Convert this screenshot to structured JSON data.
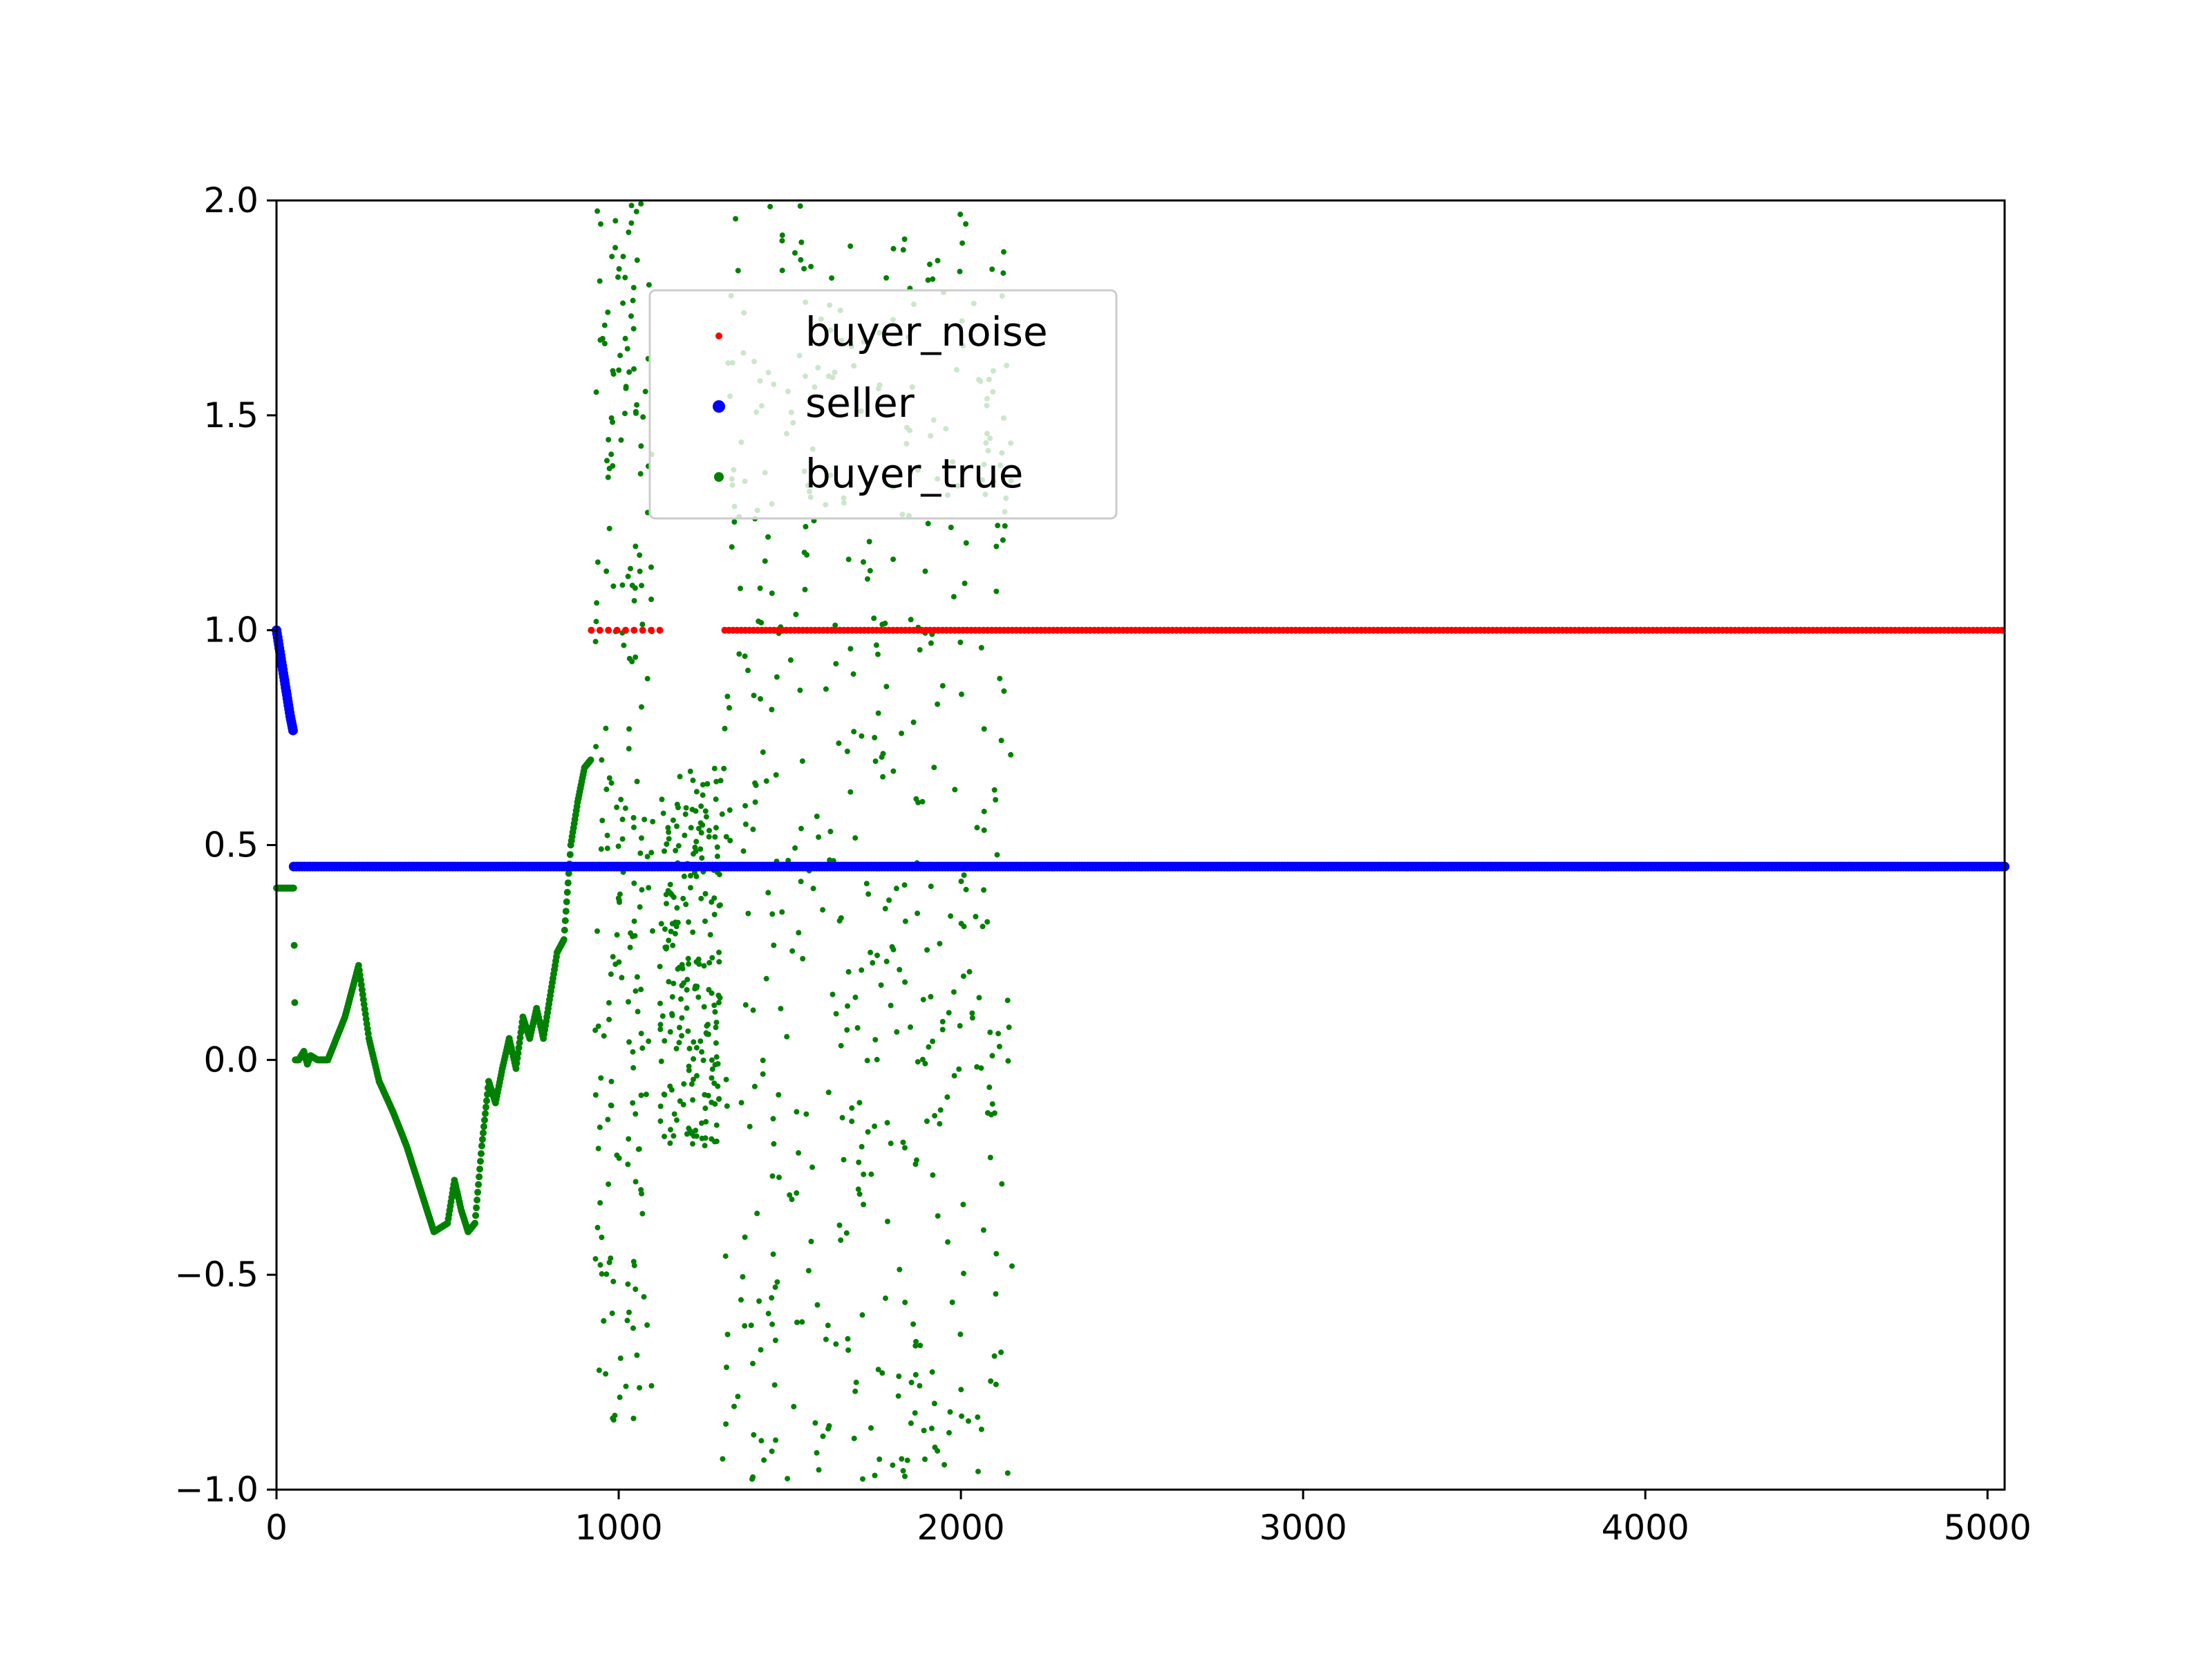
{
  "chart_data": {
    "type": "scatter",
    "title": "",
    "xlabel": "",
    "ylabel": "",
    "xlim": [
      0,
      5050
    ],
    "ylim": [
      -1.0,
      2.0
    ],
    "x_ticks": [
      0,
      1000,
      2000,
      3000,
      4000,
      5000
    ],
    "x_tick_labels": [
      "0",
      "1000",
      "2000",
      "3000",
      "4000",
      "5000"
    ],
    "y_ticks": [
      -1.0,
      -0.5,
      0.0,
      0.5,
      1.0,
      1.5,
      2.0
    ],
    "y_tick_labels": [
      "−1.0",
      "−0.5",
      "0.0",
      "0.5",
      "1.0",
      "1.5",
      "2.0"
    ],
    "grid": false,
    "legend": {
      "placement": "upper-center"
    },
    "series": [
      {
        "name": "buyer_noise",
        "color": "#ff0000",
        "marker_size": 1,
        "segments": [
          {
            "x_start": 920,
            "x_end": 1130,
            "step": 25,
            "y": 1.0
          },
          {
            "x_start": 1310,
            "x_end": 5050,
            "step": 12,
            "y": 1.0
          }
        ]
      },
      {
        "name": "seller",
        "color": "#0000ff",
        "marker_size": 2,
        "segments": [
          {
            "x": [
              0,
              10,
              20,
              30,
              40,
              50
            ],
            "y": [
              1.0,
              0.95,
              0.9,
              0.85,
              0.8,
              0.76
            ]
          },
          {
            "x_start": 50,
            "x_end": 5050,
            "step": 8,
            "y": 0.45
          }
        ]
      },
      {
        "name": "buyer_true",
        "color": "#008000",
        "marker_size": 1.5,
        "curve": {
          "x": [
            0,
            20,
            40,
            50,
            55,
            65,
            80,
            90,
            100,
            120,
            150,
            200,
            240,
            270,
            300,
            340,
            380,
            420,
            460,
            500,
            520,
            540,
            560,
            580,
            600,
            620,
            640,
            660,
            680,
            700,
            720,
            740,
            760,
            780,
            800,
            820,
            840,
            860,
            880,
            900,
            920
          ],
          "y": [
            0.4,
            0.4,
            0.4,
            0.4,
            0.0,
            0.0,
            0.02,
            -0.01,
            0.01,
            0.0,
            0.0,
            0.1,
            0.22,
            0.05,
            -0.05,
            -0.12,
            -0.2,
            -0.3,
            -0.4,
            -0.38,
            -0.28,
            -0.35,
            -0.4,
            -0.38,
            -0.2,
            -0.05,
            -0.1,
            -0.02,
            0.05,
            -0.02,
            0.1,
            0.05,
            0.12,
            0.05,
            0.15,
            0.25,
            0.28,
            0.5,
            0.6,
            0.68,
            0.7
          ]
        },
        "scatter_regions": [
          {
            "x_start": 930,
            "x_end": 1100,
            "y_min": -0.85,
            "y_max": 2.0,
            "count": 210
          },
          {
            "x_start": 1120,
            "x_end": 1300,
            "y_min": -0.2,
            "y_max": 0.68,
            "count": 220
          },
          {
            "x_start": 1300,
            "x_end": 2150,
            "y_min": -0.98,
            "y_max": 2.0,
            "count": 520
          }
        ]
      }
    ]
  }
}
